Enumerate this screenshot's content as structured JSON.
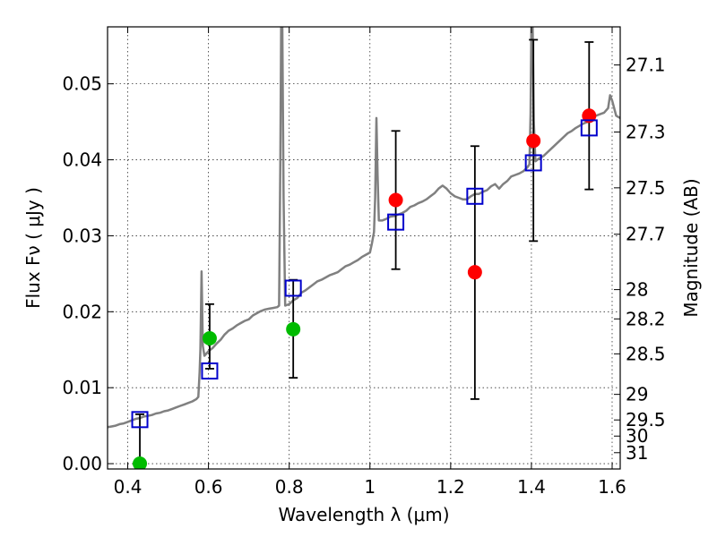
{
  "chart_data": {
    "type": "scatter",
    "xlabel": "Wavelength  λ (μm)",
    "ylabel": "Flux  Fν  ( μJy )",
    "ylabel_right": "Magnitude (AB)",
    "xlim": [
      0.35,
      1.62
    ],
    "ylim": [
      -0.0007,
      0.0575
    ],
    "grid": true,
    "x_ticks": [
      {
        "value": 0.4,
        "label": "0.4"
      },
      {
        "value": 0.6,
        "label": "0.6"
      },
      {
        "value": 0.8,
        "label": "0.8"
      },
      {
        "value": 1.0,
        "label": "1"
      },
      {
        "value": 1.2,
        "label": "1.2"
      },
      {
        "value": 1.4,
        "label": "1.4"
      },
      {
        "value": 1.6,
        "label": "1.6"
      }
    ],
    "y_ticks": [
      {
        "value": 0.0,
        "label": "0.00"
      },
      {
        "value": 0.01,
        "label": "0.01"
      },
      {
        "value": 0.02,
        "label": "0.02"
      },
      {
        "value": 0.03,
        "label": "0.03"
      },
      {
        "value": 0.04,
        "label": "0.04"
      },
      {
        "value": 0.05,
        "label": "0.05"
      }
    ],
    "right_ticks": [
      {
        "mag": 27.1,
        "label": "27.1"
      },
      {
        "mag": 27.3,
        "label": "27.3"
      },
      {
        "mag": 27.5,
        "label": "27.5"
      },
      {
        "mag": 27.7,
        "label": "27.7"
      },
      {
        "mag": 28.0,
        "label": "28"
      },
      {
        "mag": 28.2,
        "label": "28.2"
      },
      {
        "mag": 28.5,
        "label": "28.5"
      },
      {
        "mag": 29.0,
        "label": "29"
      },
      {
        "mag": 29.5,
        "label": "29.5"
      },
      {
        "mag": 30.0,
        "label": "30"
      },
      {
        "mag": 31.0,
        "label": "31"
      }
    ],
    "spectrum": {
      "color": "#808080",
      "points": [
        [
          0.35,
          0.0048
        ],
        [
          0.36,
          0.0049
        ],
        [
          0.37,
          0.005
        ],
        [
          0.38,
          0.0052
        ],
        [
          0.39,
          0.0053
        ],
        [
          0.4,
          0.0055
        ],
        [
          0.41,
          0.0057
        ],
        [
          0.42,
          0.0059
        ],
        [
          0.43,
          0.006
        ],
        [
          0.44,
          0.0062
        ],
        [
          0.45,
          0.0063
        ],
        [
          0.46,
          0.0064
        ],
        [
          0.47,
          0.0066
        ],
        [
          0.48,
          0.0067
        ],
        [
          0.49,
          0.0069
        ],
        [
          0.5,
          0.007
        ],
        [
          0.51,
          0.0072
        ],
        [
          0.52,
          0.0074
        ],
        [
          0.53,
          0.0076
        ],
        [
          0.54,
          0.0078
        ],
        [
          0.55,
          0.008
        ],
        [
          0.56,
          0.0082
        ],
        [
          0.57,
          0.0085
        ],
        [
          0.575,
          0.0088
        ],
        [
          0.578,
          0.012
        ],
        [
          0.58,
          0.015
        ],
        [
          0.583,
          0.0253
        ],
        [
          0.586,
          0.0155
        ],
        [
          0.59,
          0.0142
        ],
        [
          0.6,
          0.0148
        ],
        [
          0.61,
          0.0152
        ],
        [
          0.62,
          0.0158
        ],
        [
          0.63,
          0.0163
        ],
        [
          0.64,
          0.017
        ],
        [
          0.65,
          0.0175
        ],
        [
          0.66,
          0.0178
        ],
        [
          0.67,
          0.0182
        ],
        [
          0.68,
          0.0185
        ],
        [
          0.69,
          0.0188
        ],
        [
          0.7,
          0.019
        ],
        [
          0.71,
          0.0195
        ],
        [
          0.72,
          0.0198
        ],
        [
          0.73,
          0.0201
        ],
        [
          0.74,
          0.0203
        ],
        [
          0.75,
          0.0204
        ],
        [
          0.76,
          0.0205
        ],
        [
          0.77,
          0.0206
        ],
        [
          0.775,
          0.0208
        ],
        [
          0.778,
          0.04
        ],
        [
          0.78,
          0.0575
        ],
        [
          0.783,
          0.0575
        ],
        [
          0.786,
          0.035
        ],
        [
          0.79,
          0.0208
        ],
        [
          0.8,
          0.021
        ],
        [
          0.81,
          0.0215
        ],
        [
          0.82,
          0.0218
        ],
        [
          0.83,
          0.0225
        ],
        [
          0.84,
          0.0228
        ],
        [
          0.85,
          0.0232
        ],
        [
          0.86,
          0.0236
        ],
        [
          0.87,
          0.024
        ],
        [
          0.88,
          0.0242
        ],
        [
          0.89,
          0.0245
        ],
        [
          0.9,
          0.0248
        ],
        [
          0.91,
          0.025
        ],
        [
          0.92,
          0.0252
        ],
        [
          0.93,
          0.0256
        ],
        [
          0.94,
          0.026
        ],
        [
          0.95,
          0.0262
        ],
        [
          0.96,
          0.0265
        ],
        [
          0.97,
          0.0268
        ],
        [
          0.98,
          0.0272
        ],
        [
          0.99,
          0.0275
        ],
        [
          1.0,
          0.0278
        ],
        [
          1.005,
          0.029
        ],
        [
          1.01,
          0.0305
        ],
        [
          1.013,
          0.035
        ],
        [
          1.016,
          0.0455
        ],
        [
          1.019,
          0.038
        ],
        [
          1.022,
          0.032
        ],
        [
          1.03,
          0.032
        ],
        [
          1.04,
          0.0322
        ],
        [
          1.05,
          0.0325
        ],
        [
          1.06,
          0.0326
        ],
        [
          1.07,
          0.0328
        ],
        [
          1.08,
          0.033
        ],
        [
          1.09,
          0.0333
        ],
        [
          1.1,
          0.0338
        ],
        [
          1.11,
          0.034
        ],
        [
          1.12,
          0.0343
        ],
        [
          1.13,
          0.0345
        ],
        [
          1.14,
          0.0348
        ],
        [
          1.15,
          0.0352
        ],
        [
          1.16,
          0.0356
        ],
        [
          1.17,
          0.0362
        ],
        [
          1.18,
          0.0366
        ],
        [
          1.19,
          0.0362
        ],
        [
          1.2,
          0.0356
        ],
        [
          1.21,
          0.0352
        ],
        [
          1.22,
          0.035
        ],
        [
          1.23,
          0.0348
        ],
        [
          1.24,
          0.0348
        ],
        [
          1.25,
          0.0352
        ],
        [
          1.26,
          0.0355
        ],
        [
          1.27,
          0.0355
        ],
        [
          1.28,
          0.0358
        ],
        [
          1.29,
          0.036
        ],
        [
          1.3,
          0.0365
        ],
        [
          1.31,
          0.0368
        ],
        [
          1.32,
          0.0362
        ],
        [
          1.33,
          0.0368
        ],
        [
          1.34,
          0.0372
        ],
        [
          1.35,
          0.0378
        ],
        [
          1.36,
          0.038
        ],
        [
          1.37,
          0.0382
        ],
        [
          1.38,
          0.0385
        ],
        [
          1.39,
          0.039
        ],
        [
          1.395,
          0.0394
        ],
        [
          1.398,
          0.046
        ],
        [
          1.4,
          0.0575
        ],
        [
          1.403,
          0.0575
        ],
        [
          1.406,
          0.045
        ],
        [
          1.41,
          0.0398
        ],
        [
          1.42,
          0.0402
        ],
        [
          1.43,
          0.0405
        ],
        [
          1.44,
          0.041
        ],
        [
          1.45,
          0.0415
        ],
        [
          1.46,
          0.042
        ],
        [
          1.47,
          0.0425
        ],
        [
          1.48,
          0.043
        ],
        [
          1.49,
          0.0435
        ],
        [
          1.5,
          0.0438
        ],
        [
          1.51,
          0.0442
        ],
        [
          1.52,
          0.0445
        ],
        [
          1.53,
          0.0448
        ],
        [
          1.54,
          0.045
        ],
        [
          1.55,
          0.0455
        ],
        [
          1.56,
          0.0458
        ],
        [
          1.57,
          0.046
        ],
        [
          1.58,
          0.0462
        ],
        [
          1.59,
          0.0468
        ],
        [
          1.595,
          0.0485
        ],
        [
          1.6,
          0.0478
        ],
        [
          1.61,
          0.0458
        ],
        [
          1.62,
          0.0455
        ]
      ]
    },
    "model_points": {
      "marker": "open-square",
      "color": "#0000cc",
      "points": [
        {
          "x": 0.43,
          "y": 0.0058
        },
        {
          "x": 0.603,
          "y": 0.0122
        },
        {
          "x": 0.81,
          "y": 0.0231
        },
        {
          "x": 1.064,
          "y": 0.0318
        },
        {
          "x": 1.26,
          "y": 0.0352
        },
        {
          "x": 1.405,
          "y": 0.0396
        },
        {
          "x": 1.543,
          "y": 0.0442
        }
      ]
    },
    "observed_points": [
      {
        "x": 0.43,
        "y": 0.0,
        "yerr_low": 0.0,
        "yerr_high": 0.0065,
        "color": "#00bb00"
      },
      {
        "x": 0.603,
        "y": 0.0165,
        "yerr_low": 0.0125,
        "yerr_high": 0.021,
        "color": "#00bb00"
      },
      {
        "x": 0.81,
        "y": 0.0177,
        "yerr_low": 0.0113,
        "yerr_high": 0.0242,
        "color": "#00bb00"
      },
      {
        "x": 1.064,
        "y": 0.0347,
        "yerr_low": 0.0256,
        "yerr_high": 0.0438,
        "color": "#ff0000"
      },
      {
        "x": 1.26,
        "y": 0.0252,
        "yerr_low": 0.0085,
        "yerr_high": 0.0418,
        "color": "#ff0000"
      },
      {
        "x": 1.405,
        "y": 0.0425,
        "yerr_low": 0.0293,
        "yerr_high": 0.0558,
        "color": "#ff0000"
      },
      {
        "x": 1.543,
        "y": 0.0458,
        "yerr_low": 0.0361,
        "yerr_high": 0.0555,
        "color": "#ff0000"
      }
    ]
  }
}
